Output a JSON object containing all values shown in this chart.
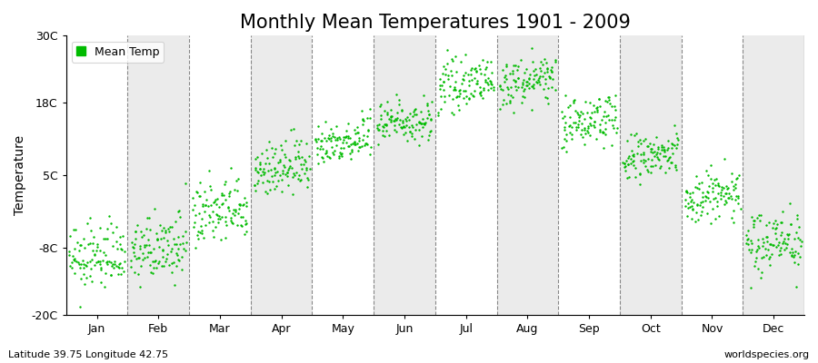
{
  "title": "Monthly Mean Temperatures 1901 - 2009",
  "ylabel": "Temperature",
  "ylim": [
    -20,
    30
  ],
  "yticks": [
    -20,
    -8,
    5,
    18,
    30
  ],
  "ytick_labels": [
    "-20C",
    "-8C",
    "5C",
    "18C",
    "30C"
  ],
  "months": [
    "Jan",
    "Feb",
    "Mar",
    "Apr",
    "May",
    "Jun",
    "Jul",
    "Aug",
    "Sep",
    "Oct",
    "Nov",
    "Dec"
  ],
  "mean_temps": [
    -10.5,
    -9.0,
    -2.5,
    5.5,
    10.5,
    14.0,
    20.5,
    21.0,
    14.0,
    7.5,
    0.5,
    -7.5
  ],
  "spread": [
    2.8,
    2.8,
    3.0,
    2.5,
    2.0,
    2.0,
    2.0,
    2.0,
    2.2,
    2.2,
    2.5,
    2.8
  ],
  "trend": [
    0.015,
    0.015,
    0.015,
    0.015,
    0.015,
    0.015,
    0.015,
    0.015,
    0.015,
    0.015,
    0.015,
    0.015
  ],
  "n_years": 109,
  "dot_color": "#00BB00",
  "dot_size": 3,
  "background_color": "#FFFFFF",
  "alt_band_color": "#EBEBEB",
  "legend_label": "Mean Temp",
  "footnote_left": "Latitude 39.75 Longitude 42.75",
  "footnote_right": "worldspecies.org",
  "title_fontsize": 15,
  "axis_label_fontsize": 10,
  "tick_fontsize": 9,
  "footnote_fontsize": 8
}
